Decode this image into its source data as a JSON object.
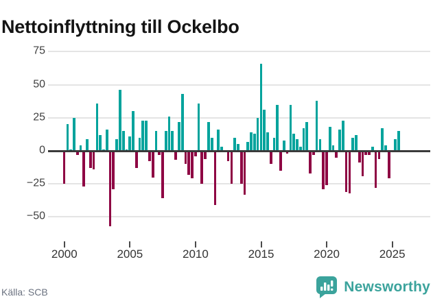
{
  "header": {
    "title": "Nettoinflyttning till Ockelbo"
  },
  "footer": {
    "source_label": "Källa: SCB",
    "brand": "Newsworthy"
  },
  "colors": {
    "positive_bar": "#00a39c",
    "negative_bar": "#8e0343",
    "zero_axis": "#3a3a3a",
    "gridline": "#e4e4e4",
    "brand_teal": "#3ba39c",
    "title_text": "#141414",
    "muted_text": "#6b7280"
  },
  "chart_data": {
    "type": "bar",
    "title": "Nettoinflyttning till Ockelbo",
    "frequency": "quarterly",
    "x_start": "2000 Q1",
    "x_end": "2025 Q3",
    "xlabel": "",
    "ylabel": "",
    "ylim": [
      -62,
      80
    ],
    "grid": "horizontal",
    "legend": "none",
    "yticks": [
      {
        "value": 75,
        "label": "75"
      },
      {
        "value": 50,
        "label": "50"
      },
      {
        "value": 25,
        "label": "25"
      },
      {
        "value": 0,
        "label": "0"
      },
      {
        "value": -25,
        "label": "−25"
      },
      {
        "value": -50,
        "label": "−50"
      }
    ],
    "xticks": [
      {
        "year": 2000,
        "label": "2000"
      },
      {
        "year": 2005,
        "label": "2005"
      },
      {
        "year": 2010,
        "label": "2010"
      },
      {
        "year": 2015,
        "label": "2015"
      },
      {
        "year": 2020,
        "label": "2020"
      },
      {
        "year": 2025,
        "label": "2025"
      }
    ],
    "values": [
      -25,
      20,
      1,
      25,
      -3,
      4,
      -27,
      9,
      -13,
      -14,
      36,
      12,
      1,
      16,
      -57,
      -29,
      9,
      46,
      15,
      1,
      11,
      30,
      -13,
      10,
      23,
      23,
      -8,
      -20,
      15,
      -3,
      -36,
      15,
      26,
      15,
      -7,
      22,
      43,
      -10,
      -18,
      -21,
      -4,
      36,
      -25,
      -6,
      22,
      10,
      -41,
      16,
      3,
      0,
      -8,
      -25,
      10,
      5,
      -25,
      -33,
      7,
      14,
      13,
      25,
      66,
      31,
      14,
      -10,
      10,
      35,
      -15,
      8,
      -2,
      35,
      13,
      9,
      3,
      17,
      22,
      -17,
      -3,
      38,
      9,
      -29,
      -26,
      18,
      4,
      -5,
      16,
      23,
      -31,
      -32,
      10,
      12,
      -9,
      -19,
      -3,
      -3,
      3,
      -28,
      -6,
      17,
      4,
      -21,
      0,
      9,
      15
    ]
  }
}
